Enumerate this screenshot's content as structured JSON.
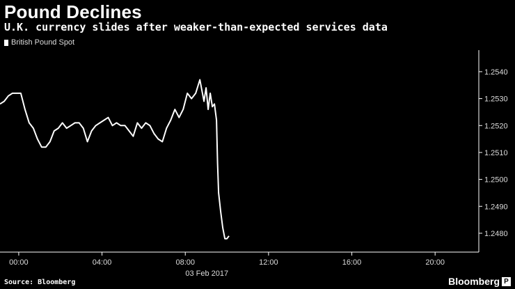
{
  "header": {
    "title": "Pound Declines",
    "subtitle": "U.K. currency slides after weaker-than-expected services data"
  },
  "footer": {
    "source": "Source: Bloomberg",
    "brand": "Bloomberg",
    "badge": "P"
  },
  "colors": {
    "background": "#000000",
    "line": "#ffffff",
    "axis": "#ffffff",
    "text": "#dddddd"
  },
  "chart_data": {
    "type": "line",
    "title": "Pound Declines",
    "subtitle": "U.K. currency slides after weaker-than-expected services data",
    "legend": {
      "entries": [
        "British Pound Spot"
      ],
      "placement": "top-left"
    },
    "xlabel": "03 Feb 2017",
    "ylabel": "",
    "x_unit": "hours",
    "xlim": [
      -0.9,
      22.1
    ],
    "ylim": [
      1.2473,
      1.2548
    ],
    "x_ticks": [
      {
        "value": 0,
        "label": "00:00"
      },
      {
        "value": 4,
        "label": "04:00"
      },
      {
        "value": 8,
        "label": "08:00"
      },
      {
        "value": 12,
        "label": "12:00"
      },
      {
        "value": 16,
        "label": "16:00"
      },
      {
        "value": 20,
        "label": "20:00"
      }
    ],
    "y_ticks": [
      {
        "value": 1.248,
        "label": "1.2480"
      },
      {
        "value": 1.249,
        "label": "1.2490"
      },
      {
        "value": 1.25,
        "label": "1.2500"
      },
      {
        "value": 1.251,
        "label": "1.2510"
      },
      {
        "value": 1.252,
        "label": "1.2520"
      },
      {
        "value": 1.253,
        "label": "1.2530"
      },
      {
        "value": 1.254,
        "label": "1.2540"
      }
    ],
    "y_axis_side": "right",
    "grid": false,
    "series": [
      {
        "name": "British Pound Spot",
        "x": [
          -0.9,
          -0.7,
          -0.5,
          -0.3,
          -0.1,
          0.1,
          0.3,
          0.5,
          0.7,
          0.9,
          1.1,
          1.3,
          1.5,
          1.7,
          1.9,
          2.1,
          2.3,
          2.5,
          2.7,
          2.9,
          3.1,
          3.3,
          3.5,
          3.7,
          3.9,
          4.1,
          4.3,
          4.5,
          4.7,
          4.9,
          5.1,
          5.3,
          5.5,
          5.7,
          5.9,
          6.1,
          6.3,
          6.5,
          6.7,
          6.9,
          7.1,
          7.3,
          7.5,
          7.7,
          7.9,
          8.1,
          8.3,
          8.5,
          8.7,
          8.9,
          9.0,
          9.1,
          9.2,
          9.3,
          9.4,
          9.5,
          9.55,
          9.6,
          9.7,
          9.8,
          9.9,
          10.0,
          10.1
        ],
        "values": [
          1.2528,
          1.2529,
          1.2531,
          1.2532,
          1.2532,
          1.2532,
          1.2526,
          1.2521,
          1.2519,
          1.2515,
          1.2512,
          1.2512,
          1.2514,
          1.2518,
          1.2519,
          1.2521,
          1.2519,
          1.252,
          1.2521,
          1.2521,
          1.2519,
          1.2514,
          1.2518,
          1.252,
          1.2521,
          1.2522,
          1.2523,
          1.252,
          1.2521,
          1.252,
          1.252,
          1.2518,
          1.2516,
          1.2521,
          1.2519,
          1.2521,
          1.252,
          1.2517,
          1.2515,
          1.2514,
          1.2519,
          1.2522,
          1.2526,
          1.2523,
          1.2526,
          1.2532,
          1.253,
          1.2532,
          1.2537,
          1.2529,
          1.2534,
          1.2526,
          1.2532,
          1.2527,
          1.2528,
          1.2522,
          1.2506,
          1.2495,
          1.2488,
          1.2482,
          1.2478,
          1.2478,
          1.2479
        ]
      }
    ]
  }
}
